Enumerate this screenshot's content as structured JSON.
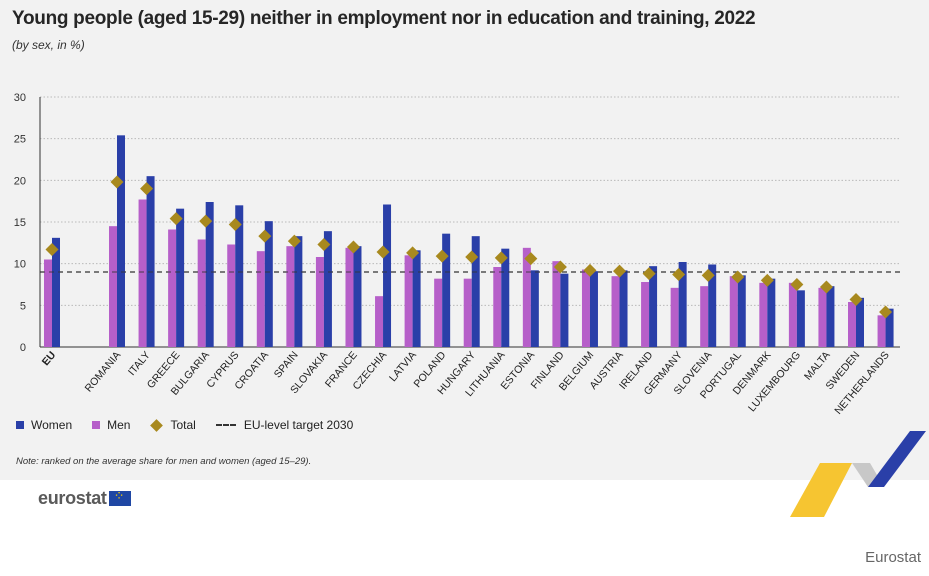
{
  "title": "Young people (aged 15-29) neither in employment nor in education and training, 2022",
  "subtitle": "(by sex, in %)",
  "note": "Note: ranked on the average share for men and women (aged 15–29).",
  "logo_text": "eurostat",
  "source_label": "Eurostat",
  "colors": {
    "women": "#2a3fa8",
    "men": "#b65fc9",
    "total": "#a8891e",
    "target": "#333333",
    "grid": "#b9b9b9"
  },
  "legend": {
    "women": "Women",
    "men": "Men",
    "total": "Total",
    "target": "EU-level target 2030"
  },
  "chart_data": {
    "type": "bar",
    "categories": [
      "EU",
      "ROMANIA",
      "ITALY",
      "GREECE",
      "BULGARIA",
      "CYPRUS",
      "CROATIA",
      "SPAIN",
      "SLOVAKIA",
      "FRANCE",
      "CZECHIA",
      "LATVIA",
      "POLAND",
      "HUNGARY",
      "LITHUANIA",
      "ESTONIA",
      "FINLAND",
      "BELGIUM",
      "AUSTRIA",
      "IRELAND",
      "GERMANY",
      "SLOVENIA",
      "PORTUGAL",
      "DENMARK",
      "LUXEMBOURG",
      "MALTA",
      "SWEDEN",
      "NETHERLANDS"
    ],
    "series": [
      {
        "name": "Women",
        "values": [
          13.1,
          25.4,
          20.5,
          16.6,
          17.4,
          17.0,
          15.1,
          13.3,
          13.9,
          12.1,
          17.1,
          11.6,
          13.6,
          13.3,
          11.8,
          9.2,
          8.8,
          9.1,
          9.2,
          9.7,
          10.2,
          9.9,
          8.6,
          8.2,
          6.8,
          7.3,
          5.9,
          4.6
        ]
      },
      {
        "name": "Men",
        "values": [
          10.5,
          14.5,
          17.7,
          14.1,
          12.9,
          12.3,
          11.5,
          12.1,
          10.8,
          11.9,
          6.1,
          11.0,
          8.2,
          8.2,
          9.6,
          11.9,
          10.3,
          9.3,
          8.5,
          7.8,
          7.1,
          7.3,
          8.5,
          7.7,
          7.7,
          7.1,
          5.4,
          3.8
        ]
      },
      {
        "name": "Total",
        "values": [
          11.7,
          19.8,
          19.0,
          15.4,
          15.1,
          14.7,
          13.3,
          12.7,
          12.3,
          12.0,
          11.4,
          11.3,
          10.9,
          10.8,
          10.7,
          10.6,
          9.6,
          9.2,
          9.1,
          8.8,
          8.7,
          8.6,
          8.4,
          8.0,
          7.5,
          7.2,
          5.7,
          4.2
        ]
      }
    ],
    "target": {
      "name": "EU-level target 2030",
      "value": 9.0
    },
    "ylim": [
      0,
      30
    ],
    "yticks": [
      0,
      5,
      10,
      15,
      20,
      25,
      30
    ],
    "grid": true,
    "legend_position": "bottom-left"
  }
}
